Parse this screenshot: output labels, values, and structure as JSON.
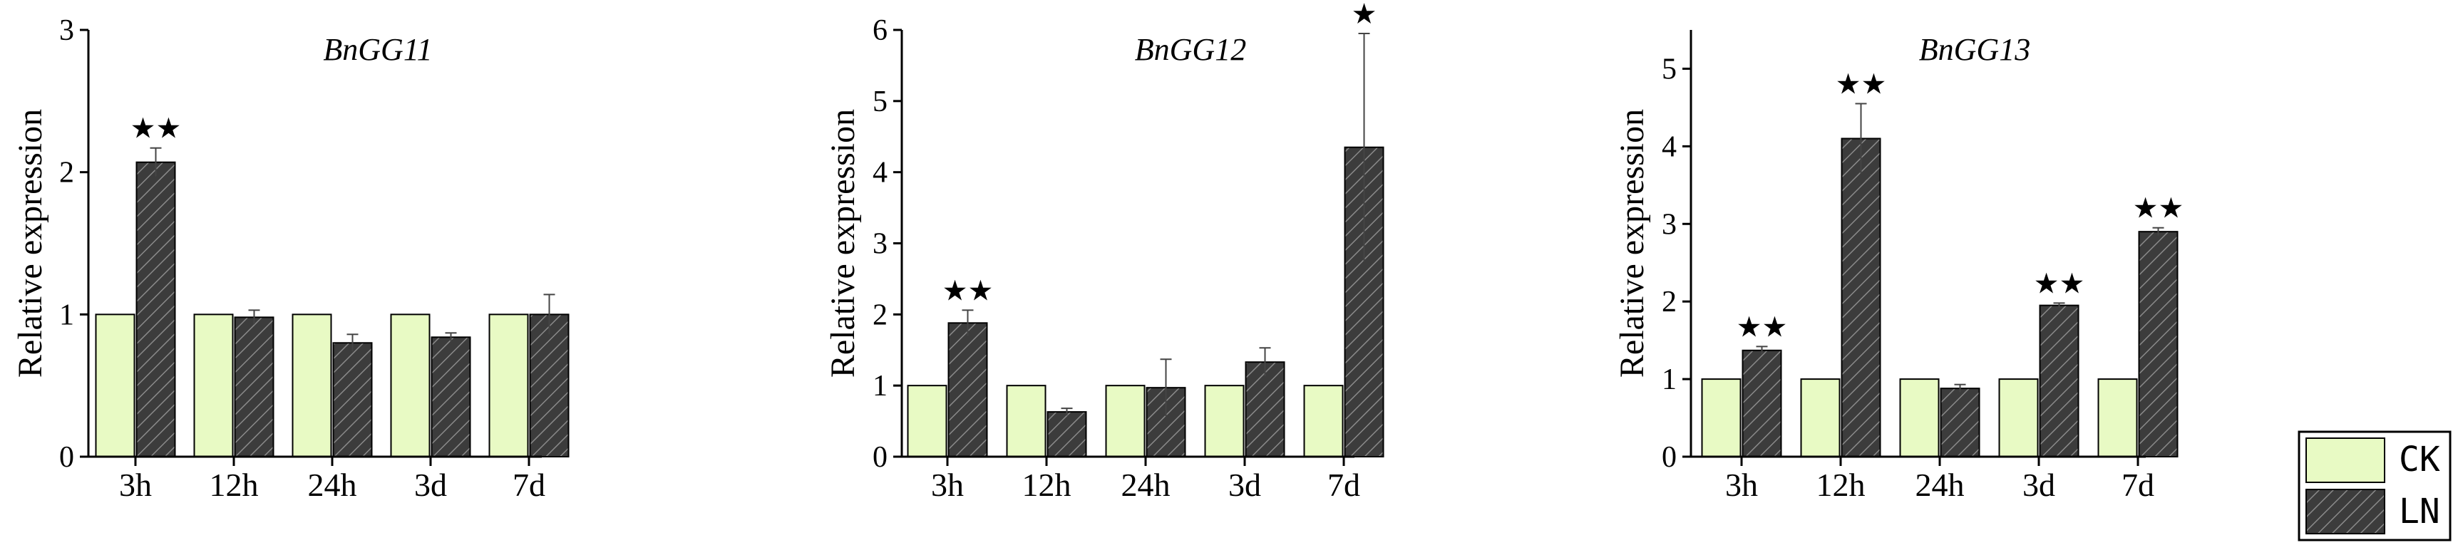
{
  "ylabel": "Relative expression",
  "colors": {
    "CK": "#e8fac4",
    "LN": "#3c3c3c",
    "hatch": "#8a8a8a"
  },
  "legend": {
    "ck_label": "CK",
    "ln_label": "LN"
  },
  "chart_data": [
    {
      "type": "bar",
      "title": "BnGG11",
      "xlabel": "",
      "ylabel": "Relative expression",
      "categories": [
        "3h",
        "12h",
        "24h",
        "3d",
        "7d"
      ],
      "ylim": [
        0,
        3
      ],
      "yticks": [
        0,
        1,
        2,
        3
      ],
      "series": [
        {
          "name": "CK",
          "values": [
            1,
            1,
            1,
            1,
            1
          ]
        },
        {
          "name": "LN",
          "values": [
            2.07,
            0.98,
            0.8,
            0.84,
            1.0
          ],
          "errors": [
            0.1,
            0.05,
            0.06,
            0.03,
            0.14
          ]
        }
      ],
      "significance": [
        "★★",
        "",
        "",
        "",
        ""
      ]
    },
    {
      "type": "bar",
      "title": "BnGG12",
      "xlabel": "",
      "ylabel": "Relative expression",
      "categories": [
        "3h",
        "12h",
        "24h",
        "3d",
        "7d"
      ],
      "ylim": [
        0,
        6
      ],
      "yticks": [
        0,
        1,
        2,
        3,
        4,
        5,
        6
      ],
      "series": [
        {
          "name": "CK",
          "values": [
            1,
            1,
            1,
            1,
            1
          ]
        },
        {
          "name": "LN",
          "values": [
            1.88,
            0.63,
            0.97,
            1.33,
            4.35
          ],
          "errors": [
            0.18,
            0.05,
            0.4,
            0.2,
            1.6
          ]
        }
      ],
      "significance": [
        "★★",
        "",
        "",
        "",
        "★"
      ]
    },
    {
      "type": "bar",
      "title": "BnGG13",
      "xlabel": "",
      "ylabel": "Relative expression",
      "categories": [
        "3h",
        "12h",
        "24h",
        "3d",
        "7d"
      ],
      "ylim": [
        0,
        5.5
      ],
      "yticks": [
        0,
        1,
        2,
        3,
        4,
        5
      ],
      "series": [
        {
          "name": "CK",
          "values": [
            1,
            1,
            1,
            1,
            1
          ]
        },
        {
          "name": "LN",
          "values": [
            1.37,
            4.1,
            0.88,
            1.95,
            2.9
          ],
          "errors": [
            0.05,
            0.45,
            0.05,
            0.03,
            0.05
          ]
        }
      ],
      "significance": [
        "★★",
        "★★",
        "",
        "★★",
        "★★"
      ]
    }
  ]
}
